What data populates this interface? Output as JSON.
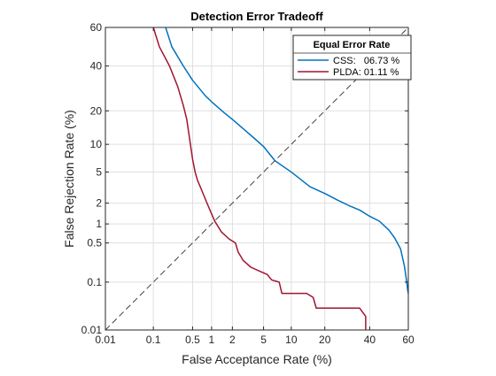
{
  "chart_data": {
    "type": "line",
    "title": "Detection Error Tradeoff",
    "xlabel": "False Acceptance Rate (%)",
    "ylabel": "False Rejection Rate (%)",
    "xscale": "normal-deviate",
    "yscale": "normal-deviate",
    "xlim": [
      0.01,
      60
    ],
    "ylim": [
      0.01,
      60
    ],
    "x_ticks": [
      0.01,
      0.1,
      0.5,
      1,
      2,
      5,
      10,
      20,
      40,
      60
    ],
    "x_tick_labels": [
      "0.01",
      "0.1",
      "0.5",
      "1",
      "2",
      "5",
      "10",
      "20",
      "40",
      "60"
    ],
    "y_ticks": [
      0.01,
      0.1,
      0.5,
      1,
      2,
      5,
      10,
      20,
      40,
      60
    ],
    "y_tick_labels": [
      "0.01",
      "0.1",
      "0.5",
      "1",
      "2",
      "5",
      "10",
      "20",
      "40",
      "60"
    ],
    "grid": true,
    "legend": {
      "title": "Equal Error Rate",
      "placement": "top-right"
    },
    "series": [
      {
        "name": "CSS:   06.73 %",
        "color": "#0072BD",
        "style": "solid",
        "points": [
          [
            0.17,
            60
          ],
          [
            0.22,
            50
          ],
          [
            0.35,
            40
          ],
          [
            0.5,
            33
          ],
          [
            0.8,
            26
          ],
          [
            1.0,
            23.5
          ],
          [
            1.5,
            19.5
          ],
          [
            2.0,
            17
          ],
          [
            3.0,
            13.5
          ],
          [
            4.0,
            11.2
          ],
          [
            5.0,
            9.5
          ],
          [
            6.73,
            6.73
          ],
          [
            10,
            5.0
          ],
          [
            15,
            3.3
          ],
          [
            20,
            2.7
          ],
          [
            25,
            2.2
          ],
          [
            30,
            1.85
          ],
          [
            35,
            1.6
          ],
          [
            40,
            1.3
          ],
          [
            45,
            1.1
          ],
          [
            50,
            0.8
          ],
          [
            53,
            0.6
          ],
          [
            56,
            0.4
          ],
          [
            58,
            0.2
          ],
          [
            59.2,
            0.1
          ],
          [
            59.7,
            0.07
          ],
          [
            60,
            0.06
          ]
        ]
      },
      {
        "name": "PLDA: 01.11 %",
        "color": "#A2142F",
        "style": "solid",
        "points": [
          [
            0.1,
            60
          ],
          [
            0.13,
            50
          ],
          [
            0.2,
            40
          ],
          [
            0.28,
            30
          ],
          [
            0.35,
            22
          ],
          [
            0.4,
            17
          ],
          [
            0.45,
            11
          ],
          [
            0.5,
            7
          ],
          [
            0.55,
            5
          ],
          [
            0.6,
            4
          ],
          [
            0.7,
            3
          ],
          [
            0.85,
            2
          ],
          [
            1.11,
            1.11
          ],
          [
            1.4,
            0.75
          ],
          [
            1.8,
            0.58
          ],
          [
            2.2,
            0.5
          ],
          [
            2.4,
            0.35
          ],
          [
            2.8,
            0.25
          ],
          [
            3.5,
            0.19
          ],
          [
            4.5,
            0.16
          ],
          [
            5.5,
            0.14
          ],
          [
            6.2,
            0.11
          ],
          [
            7.5,
            0.1
          ],
          [
            8.0,
            0.06
          ],
          [
            14,
            0.06
          ],
          [
            16,
            0.05
          ],
          [
            17,
            0.03
          ],
          [
            35,
            0.03
          ],
          [
            38,
            0.02
          ],
          [
            38,
            0.01
          ]
        ]
      },
      {
        "name": "",
        "color": "#404040",
        "style": "dashed",
        "points": [
          [
            0.01,
            0.01
          ],
          [
            60,
            60
          ]
        ]
      }
    ]
  }
}
